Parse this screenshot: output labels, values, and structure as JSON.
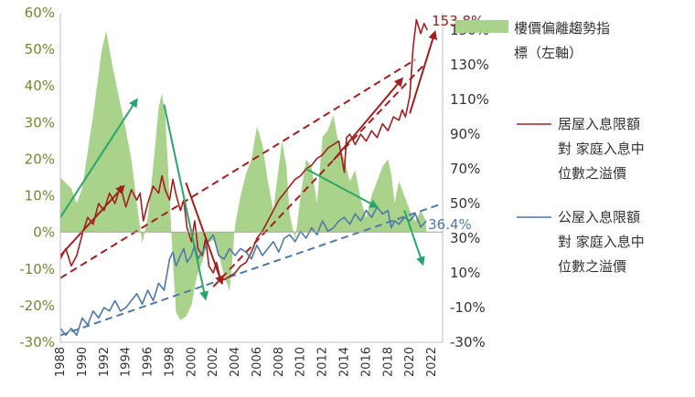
{
  "colors": {
    "index_fill": "#a9d38a",
    "private_line": "#a31f1f",
    "public_line": "#4f79a8",
    "green_arrow": "#29a66a",
    "left_axis_text": "#6f8a2e",
    "right_axis_text": "#333333"
  },
  "chart_data": {
    "type": "area+line",
    "x_range": [
      1988,
      2023
    ],
    "x_ticks": [
      "1988",
      "1990",
      "1992",
      "1994",
      "1996",
      "1998",
      "2000",
      "2002",
      "2004",
      "2006",
      "2008",
      "2010",
      "2012",
      "2014",
      "2016",
      "2018",
      "2020",
      "2022"
    ],
    "left_axis": {
      "range": [
        -30,
        60
      ],
      "ticks": [
        -30,
        -20,
        -10,
        0,
        10,
        20,
        30,
        40,
        50,
        60
      ],
      "tick_labels": [
        "-30%",
        "-20%",
        "-10%",
        "0%",
        "10%",
        "20%",
        "30%",
        "40%",
        "50%",
        "60%"
      ]
    },
    "right_axis": {
      "range": [
        -30,
        160
      ],
      "ticks": [
        -30,
        -10,
        10,
        30,
        50,
        70,
        90,
        110,
        130,
        150
      ],
      "tick_labels": [
        "-30%",
        "-10%",
        "10%",
        "30%",
        "50%",
        "70%",
        "90%",
        "110%",
        "130%",
        "150%"
      ]
    },
    "legend_placement": "right",
    "series": [
      {
        "name": "樓價偏離趨勢指標（左軸）",
        "name_lines": [
          "樓價偏離趨勢指",
          "標（左軸）"
        ],
        "kind": "area",
        "axis": "left",
        "x": [
          1988.0,
          1989.0,
          1989.5,
          1990.0,
          1991.0,
          1991.8,
          1992.2,
          1992.8,
          1993.5,
          1994.0,
          1994.5,
          1995.0,
          1995.5,
          1996.0,
          1996.5,
          1997.0,
          1997.3,
          1997.6,
          1998.0,
          1998.3,
          1998.6,
          1999.0,
          1999.5,
          2000.0,
          2000.5,
          2001.0,
          2001.5,
          2002.0,
          2002.5,
          2003.0,
          2003.5,
          2004.0,
          2004.5,
          2005.0,
          2005.5,
          2006.0,
          2006.5,
          2007.0,
          2007.5,
          2008.0,
          2008.3,
          2008.7,
          2009.0,
          2009.5,
          2010.0,
          2010.5,
          2011.0,
          2011.5,
          2012.0,
          2012.5,
          2013.0,
          2013.5,
          2014.0,
          2014.5,
          2015.0,
          2015.5,
          2016.0,
          2016.5,
          2017.0,
          2017.5,
          2018.0,
          2018.3,
          2018.6,
          2019.0,
          2019.5,
          2020.0,
          2020.5,
          2021.0,
          2021.5
        ],
        "values": [
          15,
          12,
          8,
          12,
          32,
          50,
          55,
          45,
          35,
          28,
          20,
          8,
          -3,
          4,
          18,
          34,
          38,
          32,
          10,
          -8,
          -22,
          -24,
          -23,
          -20,
          -12,
          -8,
          -3,
          -2,
          -6,
          -12,
          -16,
          2,
          10,
          16,
          20,
          29,
          24,
          14,
          6,
          18,
          25,
          18,
          5,
          -2,
          10,
          20,
          18,
          8,
          26,
          28,
          32,
          24,
          20,
          14,
          17,
          9,
          4,
          10,
          14,
          18,
          20,
          16,
          8,
          14,
          10,
          6,
          3,
          6,
          3
        ]
      },
      {
        "name": "居屋入息限額對家庭入息中位數之溢價",
        "name_lines": [
          "居屋入息限額",
          "對 家庭入息中",
          "位數之溢價"
        ],
        "kind": "line",
        "axis": "right",
        "x": [
          1988.0,
          1988.5,
          1989.0,
          1989.5,
          1990.0,
          1990.5,
          1991.0,
          1991.5,
          1992.0,
          1992.5,
          1993.0,
          1993.5,
          1994.0,
          1994.5,
          1995.0,
          1995.3,
          1995.6,
          1996.0,
          1996.5,
          1997.0,
          1997.3,
          1997.6,
          1998.0,
          1998.3,
          1998.6,
          1999.0,
          1999.3,
          1999.6,
          2000.0,
          2000.3,
          2000.6,
          2001.0,
          2001.3,
          2001.6,
          2002.0,
          2002.3,
          2002.6,
          2003.0,
          2003.5,
          2004.0,
          2004.5,
          2005.0,
          2005.5,
          2006.0,
          2006.5,
          2007.0,
          2007.5,
          2008.0,
          2008.5,
          2009.0,
          2009.5,
          2010.0,
          2010.5,
          2011.0,
          2011.5,
          2012.0,
          2012.5,
          2013.0,
          2013.5,
          2014.0,
          2014.2,
          2014.5,
          2015.0,
          2015.5,
          2016.0,
          2016.5,
          2017.0,
          2017.5,
          2018.0,
          2018.5,
          2019.0,
          2019.3,
          2019.6,
          2020.0,
          2020.3,
          2020.6,
          2021.0,
          2021.3,
          2021.6
        ],
        "values": [
          18,
          24,
          14,
          20,
          32,
          42,
          38,
          50,
          46,
          56,
          50,
          60,
          48,
          58,
          52,
          56,
          40,
          50,
          60,
          56,
          66,
          58,
          52,
          64,
          55,
          46,
          52,
          36,
          28,
          40,
          24,
          20,
          30,
          14,
          10,
          16,
          8,
          6,
          8,
          10,
          14,
          16,
          22,
          30,
          34,
          40,
          46,
          52,
          56,
          60,
          64,
          66,
          70,
          72,
          76,
          78,
          82,
          84,
          86,
          68,
          88,
          90,
          84,
          90,
          86,
          92,
          88,
          96,
          92,
          100,
          98,
          104,
          100,
          112,
          140,
          156,
          148,
          153.8,
          150
        ]
      },
      {
        "name": "公屋入息限額對家庭入息中位數之溢價",
        "name_lines": [
          "公屋入息限額",
          "對 家庭入息中",
          "位數之溢價"
        ],
        "kind": "line",
        "axis": "right",
        "x": [
          1988.0,
          1988.5,
          1989.0,
          1989.5,
          1990.0,
          1990.5,
          1991.0,
          1991.5,
          1992.0,
          1992.5,
          1993.0,
          1993.5,
          1994.0,
          1994.5,
          1995.0,
          1995.5,
          1996.0,
          1996.5,
          1997.0,
          1997.5,
          1998.0,
          1998.3,
          1998.6,
          1999.0,
          1999.3,
          1999.6,
          2000.0,
          2000.3,
          2000.6,
          2001.0,
          2001.5,
          2002.0,
          2002.5,
          2003.0,
          2003.5,
          2004.0,
          2004.5,
          2005.0,
          2005.5,
          2006.0,
          2006.5,
          2007.0,
          2007.5,
          2008.0,
          2008.5,
          2009.0,
          2009.5,
          2010.0,
          2010.5,
          2011.0,
          2011.5,
          2012.0,
          2012.5,
          2013.0,
          2013.5,
          2014.0,
          2014.5,
          2015.0,
          2015.5,
          2016.0,
          2016.5,
          2017.0,
          2017.5,
          2018.0,
          2018.3,
          2018.6,
          2019.0,
          2019.5,
          2020.0,
          2020.5,
          2021.0,
          2021.5
        ],
        "values": [
          -22,
          -26,
          -22,
          -26,
          -16,
          -20,
          -12,
          -16,
          -10,
          -12,
          -6,
          -12,
          -10,
          -6,
          -2,
          -8,
          0,
          -6,
          4,
          0,
          18,
          22,
          14,
          20,
          24,
          16,
          20,
          26,
          18,
          22,
          28,
          32,
          20,
          18,
          24,
          20,
          24,
          22,
          18,
          26,
          20,
          24,
          28,
          22,
          30,
          32,
          28,
          34,
          30,
          36,
          32,
          40,
          34,
          36,
          40,
          42,
          38,
          44,
          40,
          46,
          42,
          48,
          44,
          46,
          36,
          40,
          38,
          42,
          40,
          44,
          36.4,
          40
        ]
      }
    ],
    "annotations": [
      {
        "text": "153.8%",
        "x": 2021.0,
        "y": 153.8,
        "axis": "right",
        "series": "居屋"
      },
      {
        "text": "36.4%",
        "x": 2021.0,
        "y": 36.4,
        "axis": "right",
        "series": "公屋"
      }
    ],
    "trend_lines": [
      {
        "series": "居屋",
        "axis": "right",
        "from": [
          1988.0,
          7
        ],
        "to": [
          2020.5,
          133
        ]
      },
      {
        "series": "居屋",
        "axis": "right",
        "from": [
          2002.0,
          2
        ],
        "to": [
          2021.3,
          130
        ]
      },
      {
        "series": "公屋",
        "axis": "right",
        "from": [
          1988.0,
          -26
        ],
        "to": [
          2023.0,
          50
        ]
      }
    ],
    "arrows": [
      {
        "color": "green",
        "axis": "right",
        "from": [
          1988.0,
          42
        ],
        "to": [
          1995.0,
          110
        ]
      },
      {
        "color": "green",
        "axis": "right",
        "from": [
          1997.5,
          107
        ],
        "to": [
          2001.3,
          -5
        ]
      },
      {
        "color": "green",
        "axis": "right",
        "from": [
          2010.5,
          70
        ],
        "to": [
          2017.0,
          48
        ]
      },
      {
        "color": "green",
        "axis": "right",
        "from": [
          2019.5,
          46
        ],
        "to": [
          2021.2,
          15
        ]
      },
      {
        "color": "red",
        "axis": "right",
        "from": [
          1988.0,
          20
        ],
        "to": [
          1993.8,
          60
        ]
      },
      {
        "color": "red",
        "axis": "right",
        "from": [
          1999.5,
          62
        ],
        "to": [
          2002.8,
          4
        ]
      },
      {
        "color": "red",
        "axis": "right",
        "from": [
          2013.0,
          75
        ],
        "to": [
          2019.3,
          122
        ]
      },
      {
        "color": "red",
        "axis": "right",
        "from": [
          2020.0,
          102
        ],
        "to": [
          2022.3,
          149
        ]
      }
    ]
  }
}
